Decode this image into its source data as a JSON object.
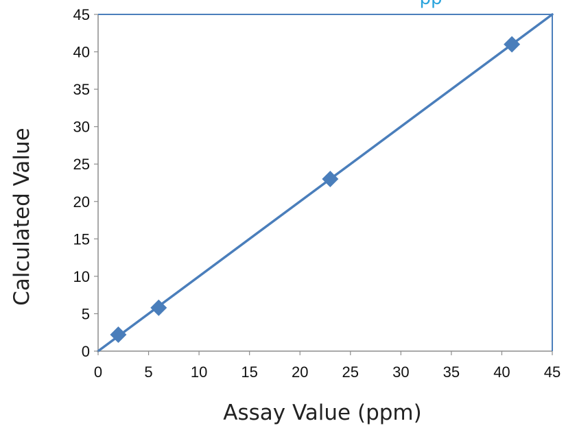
{
  "chart_data": {
    "type": "scatter",
    "title": "",
    "xlabel": "Assay Value (ppm)",
    "ylabel": "Calculated Value",
    "xlim": [
      0,
      45
    ],
    "ylim": [
      0,
      45
    ],
    "x_ticks": [
      "0",
      "5",
      "10",
      "15",
      "20",
      "25",
      "30",
      "35",
      "40",
      "45"
    ],
    "y_ticks": [
      "0",
      "5",
      "10",
      "15",
      "20",
      "25",
      "30",
      "35",
      "40",
      "45"
    ],
    "grid": false,
    "series": [
      {
        "marker": "diamond",
        "color": "#4a7ebb",
        "points": [
          {
            "x": 2,
            "y": 2.2
          },
          {
            "x": 6,
            "y": 5.8
          },
          {
            "x": 23,
            "y": 23
          },
          {
            "x": 41,
            "y": 41
          }
        ]
      }
    ],
    "reference_line": {
      "from": [
        0,
        0
      ],
      "to": [
        45,
        45
      ],
      "color": "#4a7ebb"
    },
    "frame_color": "#4a7ebb",
    "top_text_fragment": "pp"
  }
}
